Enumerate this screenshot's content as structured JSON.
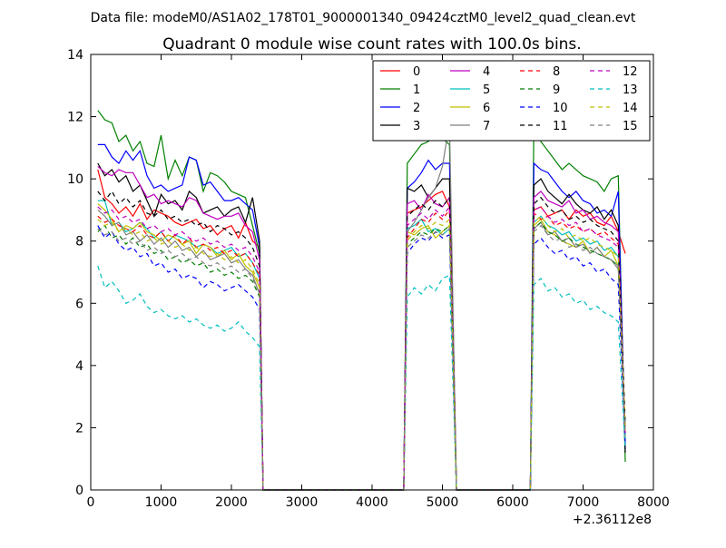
{
  "suptitle": "Data file: modeM0/AS1A02_178T01_9000001340_09424cztM0_level2_quad_clean.evt",
  "chart_data": {
    "type": "line",
    "title": "Quadrant 0 module wise count rates with 100.0s bins.",
    "xlabel": "",
    "ylabel": "",
    "xlim": [
      0,
      8000
    ],
    "ylim": [
      0,
      14
    ],
    "xticks": [
      0,
      1000,
      2000,
      3000,
      4000,
      5000,
      6000,
      7000,
      8000
    ],
    "yticks": [
      0,
      2,
      4,
      6,
      8,
      10,
      12,
      14
    ],
    "x_offset_label": "+2.36112e8",
    "legend_location": "top-right",
    "segments": [
      {
        "x_start": 100,
        "x_end": 2400
      },
      {
        "x_start": 4500,
        "x_end": 5100
      },
      {
        "x_start": 6300,
        "x_end": 7600
      }
    ],
    "gaps": [
      [
        2450,
        4450
      ],
      [
        5200,
        6250
      ]
    ],
    "series": [
      {
        "name": "0",
        "color": "#ff0000",
        "style": "solid",
        "segments": [
          [
            10.3,
            9.4,
            9.2,
            8.9,
            9.1,
            8.8,
            9.2,
            8.7,
            9.0,
            8.9,
            8.8,
            8.6,
            8.5,
            8.6,
            8.7,
            8.4,
            8.5,
            8.2,
            8.4,
            8.5,
            8.1,
            8.6,
            8.0,
            7.8
          ],
          [
            8.9,
            9.0,
            9.1,
            9.3,
            9.5,
            9.6,
            9.1
          ],
          [
            9.0,
            9.1,
            8.8,
            8.9,
            9.0,
            8.7,
            9.0,
            8.8,
            8.9,
            8.6,
            8.5,
            8.8,
            8.3,
            7.6
          ]
        ]
      },
      {
        "name": "1",
        "color": "#008000",
        "style": "solid",
        "segments": [
          [
            12.2,
            11.9,
            11.8,
            11.2,
            11.4,
            10.9,
            11.2,
            10.5,
            10.4,
            11.4,
            10.0,
            10.6,
            10.1,
            10.7,
            10.6,
            9.6,
            10.2,
            10.1,
            9.9,
            9.6,
            9.5,
            9.4,
            8.5,
            7.6
          ],
          [
            10.5,
            10.8,
            11.1,
            11.2,
            11.6,
            11.3,
            11.1
          ],
          [
            11.9,
            11.2,
            10.9,
            10.6,
            10.3,
            10.5,
            10.3,
            10.1,
            10.0,
            9.9,
            9.6,
            10.0,
            10.1,
            0.9
          ]
        ]
      },
      {
        "name": "2",
        "color": "#0000ff",
        "style": "solid",
        "segments": [
          [
            11.1,
            11.1,
            10.7,
            10.5,
            10.9,
            10.6,
            10.9,
            10.1,
            9.7,
            9.8,
            9.6,
            9.7,
            9.8,
            10.7,
            10.6,
            9.8,
            9.9,
            9.6,
            9.3,
            9.3,
            9.4,
            9.2,
            9.0,
            7.8
          ],
          [
            9.7,
            9.9,
            10.2,
            10.6,
            10.3,
            10.5,
            10.5
          ],
          [
            10.5,
            10.3,
            10.2,
            9.9,
            9.6,
            9.4,
            9.6,
            9.3,
            9.2,
            8.9,
            9.0,
            8.8,
            9.6,
            1.3
          ]
        ]
      },
      {
        "name": "3",
        "color": "#000000",
        "style": "solid",
        "segments": [
          [
            10.5,
            10.1,
            10.3,
            9.9,
            10.1,
            9.6,
            9.8,
            9.3,
            8.8,
            9.5,
            9.2,
            9.3,
            9.0,
            9.6,
            9.4,
            8.9,
            9.0,
            9.1,
            8.8,
            9.0,
            9.1,
            8.6,
            9.4,
            8.0
          ],
          [
            9.7,
            9.6,
            9.8,
            9.4,
            9.7,
            10.0,
            10.0
          ],
          [
            9.8,
            10.0,
            9.6,
            9.4,
            9.2,
            9.5,
            9.2,
            9.0,
            8.9,
            9.1,
            8.7,
            9.0,
            8.5,
            1.2
          ]
        ]
      },
      {
        "name": "4",
        "color": "#bf00bf",
        "style": "solid",
        "segments": [
          [
            10.4,
            10.2,
            10.1,
            10.3,
            10.2,
            10.2,
            9.8,
            9.4,
            9.5,
            9.2,
            9.3,
            9.2,
            9.1,
            9.4,
            9.3,
            8.9,
            8.8,
            8.7,
            8.8,
            8.8,
            8.9,
            8.5,
            8.3,
            7.4
          ],
          [
            9.2,
            9.3,
            9.0,
            9.5,
            9.2,
            9.1,
            9.4
          ],
          [
            9.4,
            9.6,
            9.3,
            9.2,
            9.1,
            9.3,
            8.9,
            9.0,
            8.7,
            8.8,
            8.6,
            8.5,
            8.3,
            1.5
          ]
        ]
      },
      {
        "name": "5",
        "color": "#00bfbf",
        "style": "solid",
        "segments": [
          [
            9.3,
            9.3,
            8.5,
            8.6,
            8.3,
            8.4,
            8.6,
            8.4,
            8.1,
            8.3,
            8.0,
            8.2,
            8.1,
            8.0,
            7.8,
            7.9,
            7.8,
            7.6,
            7.7,
            7.8,
            7.5,
            7.6,
            7.3,
            6.8
          ],
          [
            8.4,
            8.5,
            8.7,
            8.3,
            8.4,
            8.2,
            8.4
          ],
          [
            8.6,
            8.8,
            8.5,
            8.4,
            8.2,
            8.3,
            8.0,
            8.1,
            7.9,
            8.0,
            7.7,
            7.8,
            7.5,
            1.6
          ]
        ]
      },
      {
        "name": "6",
        "color": "#bfbf00",
        "style": "solid",
        "segments": [
          [
            9.2,
            9.0,
            8.7,
            8.3,
            8.5,
            8.4,
            8.6,
            8.3,
            8.2,
            8.0,
            8.2,
            8.1,
            7.9,
            8.0,
            7.6,
            7.9,
            7.8,
            7.5,
            7.7,
            7.4,
            7.6,
            7.2,
            7.0,
            6.5
          ],
          [
            8.3,
            8.2,
            8.4,
            8.5,
            8.1,
            8.3,
            8.5
          ],
          [
            8.5,
            8.7,
            8.3,
            8.2,
            8.0,
            7.9,
            7.8,
            8.0,
            7.6,
            7.8,
            7.5,
            7.7,
            7.2,
            1.8
          ]
        ]
      },
      {
        "name": "7",
        "color": "#808080",
        "style": "solid",
        "segments": [
          [
            9.0,
            8.8,
            8.5,
            8.6,
            8.2,
            8.3,
            8.0,
            8.2,
            7.9,
            8.1,
            7.8,
            8.0,
            7.7,
            7.8,
            7.5,
            7.7,
            7.4,
            7.5,
            7.6,
            7.3,
            7.4,
            7.1,
            6.9,
            6.3
          ],
          [
            8.3,
            8.6,
            9.0,
            9.4,
            9.7,
            10.4,
            11.8
          ],
          [
            8.4,
            8.6,
            8.2,
            8.3,
            8.0,
            8.1,
            7.8,
            7.9,
            7.6,
            7.8,
            7.5,
            7.4,
            7.1,
            2.0
          ]
        ]
      },
      {
        "name": "8",
        "color": "#ff0000",
        "style": "dashed",
        "segments": [
          [
            8.8,
            8.6,
            8.7,
            8.5,
            8.4,
            8.3,
            8.5,
            8.2,
            8.1,
            8.3,
            8.0,
            8.2,
            7.9,
            8.1,
            7.8,
            7.9,
            7.7,
            7.8,
            7.6,
            7.7,
            7.5,
            7.6,
            7.3,
            6.9
          ],
          [
            8.1,
            8.4,
            8.7,
            8.6,
            8.9,
            8.7,
            9.0
          ],
          [
            8.9,
            8.7,
            8.8,
            8.5,
            8.6,
            8.4,
            8.5,
            8.3,
            8.4,
            8.2,
            8.3,
            8.1,
            7.9,
            1.9
          ]
        ]
      },
      {
        "name": "9",
        "color": "#008000",
        "style": "dashed",
        "segments": [
          [
            8.3,
            8.5,
            8.1,
            8.2,
            7.9,
            8.1,
            7.8,
            7.9,
            7.6,
            7.7,
            7.4,
            7.5,
            7.3,
            7.4,
            7.2,
            7.3,
            7.0,
            7.1,
            6.9,
            7.0,
            6.8,
            6.9,
            6.7,
            6.2
          ],
          [
            7.9,
            8.1,
            8.3,
            8.2,
            8.4,
            8.3,
            8.5
          ],
          [
            8.4,
            8.6,
            8.3,
            8.2,
            8.0,
            8.1,
            7.9,
            7.8,
            7.7,
            7.6,
            7.5,
            7.4,
            7.2,
            1.7
          ]
        ]
      },
      {
        "name": "10",
        "color": "#0000ff",
        "style": "dashed",
        "segments": [
          [
            8.5,
            8.1,
            8.3,
            7.9,
            7.7,
            7.8,
            7.5,
            7.6,
            7.2,
            7.3,
            7.0,
            7.1,
            6.8,
            6.9,
            6.8,
            6.5,
            6.7,
            6.6,
            6.4,
            6.5,
            6.6,
            6.4,
            6.2,
            5.8
          ],
          [
            7.6,
            7.9,
            8.1,
            8.0,
            8.3,
            8.1,
            8.2
          ],
          [
            7.9,
            8.1,
            7.8,
            7.6,
            7.7,
            7.4,
            7.5,
            7.2,
            7.3,
            7.0,
            7.1,
            6.8,
            6.6,
            1.5
          ]
        ]
      },
      {
        "name": "11",
        "color": "#000000",
        "style": "dashed",
        "segments": [
          [
            9.6,
            9.3,
            9.6,
            9.2,
            9.4,
            9.1,
            9.3,
            8.9,
            8.8,
            9.0,
            8.7,
            8.8,
            8.6,
            8.7,
            8.5,
            8.6,
            8.3,
            8.5,
            8.4,
            8.2,
            8.3,
            8.1,
            7.8,
            7.2
          ],
          [
            8.8,
            9.0,
            9.2,
            9.0,
            9.3,
            9.1,
            9.4
          ],
          [
            9.2,
            9.4,
            9.1,
            8.9,
            9.0,
            8.7,
            8.8,
            8.6,
            8.7,
            8.5,
            8.4,
            8.3,
            8.0,
            2.1
          ]
        ]
      },
      {
        "name": "12",
        "color": "#bf00bf",
        "style": "dashed",
        "segments": [
          [
            9.1,
            8.9,
            9.0,
            8.7,
            8.8,
            8.6,
            8.7,
            8.4,
            8.5,
            8.3,
            8.4,
            8.2,
            8.3,
            8.1,
            8.0,
            8.1,
            7.9,
            8.0,
            7.8,
            7.9,
            7.7,
            7.8,
            7.5,
            7.0
          ],
          [
            8.5,
            8.7,
            8.9,
            8.7,
            9.0,
            8.8,
            9.1
          ],
          [
            9.0,
            9.1,
            8.8,
            8.6,
            8.7,
            8.5,
            8.6,
            8.3,
            8.4,
            8.2,
            8.1,
            8.0,
            7.8,
            1.8
          ]
        ]
      },
      {
        "name": "13",
        "color": "#00bfbf",
        "style": "dashed",
        "segments": [
          [
            7.2,
            6.5,
            6.7,
            6.4,
            6.0,
            6.1,
            6.3,
            5.9,
            5.7,
            5.8,
            5.6,
            5.5,
            5.6,
            5.4,
            5.5,
            5.3,
            5.2,
            5.3,
            5.1,
            5.2,
            5.4,
            5.1,
            4.9,
            4.6
          ],
          [
            6.2,
            6.5,
            6.3,
            6.6,
            6.4,
            6.8,
            6.9
          ],
          [
            6.6,
            6.8,
            6.4,
            6.5,
            6.2,
            6.3,
            6.0,
            6.1,
            5.8,
            5.9,
            5.7,
            5.6,
            5.4,
            1.3
          ]
        ]
      },
      {
        "name": "14",
        "color": "#bfbf00",
        "style": "dashed",
        "segments": [
          [
            8.7,
            8.5,
            8.6,
            8.3,
            8.4,
            8.2,
            8.3,
            8.0,
            8.1,
            7.9,
            8.0,
            7.8,
            7.9,
            7.7,
            7.8,
            7.6,
            7.5,
            7.6,
            7.4,
            7.5,
            7.3,
            7.4,
            7.1,
            6.6
          ],
          [
            8.0,
            8.3,
            8.5,
            8.4,
            8.6,
            8.5,
            8.7
          ],
          [
            8.6,
            8.8,
            8.5,
            8.3,
            8.4,
            8.1,
            8.2,
            8.0,
            8.1,
            7.9,
            7.8,
            7.7,
            7.5,
            1.9
          ]
        ]
      },
      {
        "name": "15",
        "color": "#808080",
        "style": "dashed",
        "segments": [
          [
            8.4,
            8.2,
            8.3,
            8.0,
            8.1,
            7.9,
            8.0,
            7.7,
            7.8,
            7.6,
            7.7,
            7.5,
            7.6,
            7.4,
            7.5,
            7.3,
            7.2,
            7.3,
            7.1,
            7.2,
            7.0,
            7.1,
            6.8,
            6.3
          ],
          [
            7.8,
            8.0,
            8.2,
            8.1,
            8.3,
            8.2,
            8.4
          ],
          [
            8.3,
            8.5,
            8.2,
            8.0,
            8.1,
            7.8,
            7.9,
            7.7,
            7.8,
            7.6,
            7.5,
            7.4,
            7.2,
            1.7
          ]
        ]
      }
    ]
  }
}
